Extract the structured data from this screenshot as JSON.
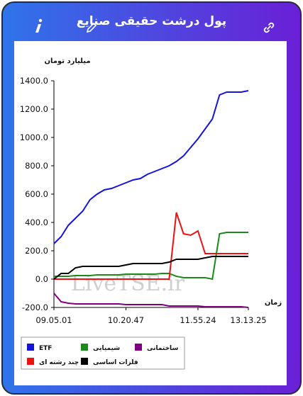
{
  "header": {
    "title": "پول درشت حقیقی صنایع"
  },
  "chart_data": {
    "type": "line",
    "y_label": "میلیارد تومان",
    "x_label": "زمان",
    "watermark": "LiveTSE.ir",
    "categories": [
      "09.05.01",
      null,
      null,
      null,
      null,
      null,
      null,
      null,
      null,
      null,
      "10.20.47",
      null,
      null,
      null,
      null,
      null,
      null,
      null,
      null,
      null,
      "11.55.24",
      null,
      null,
      null,
      null,
      null,
      null,
      "13.13.25"
    ],
    "series": [
      {
        "name": "ETF",
        "color": "#1515d8",
        "values": [
          250,
          300,
          380,
          430,
          480,
          560,
          600,
          630,
          640,
          660,
          680,
          700,
          710,
          740,
          760,
          780,
          800,
          830,
          870,
          930,
          990,
          1060,
          1130,
          1300,
          1320,
          1320,
          1320,
          1330
        ]
      },
      {
        "name": "شیمیایی",
        "color": "#1b8a1b",
        "values": [
          20,
          20,
          20,
          25,
          25,
          25,
          30,
          30,
          30,
          30,
          35,
          35,
          35,
          35,
          35,
          40,
          40,
          20,
          10,
          10,
          10,
          10,
          0,
          320,
          330,
          330,
          330,
          330
        ]
      },
      {
        "name": "ساختمانی",
        "color": "#800080",
        "values": [
          -100,
          -160,
          -170,
          -175,
          -175,
          -175,
          -175,
          -175,
          -175,
          -175,
          -180,
          -180,
          -180,
          -180,
          -180,
          -180,
          -190,
          -190,
          -190,
          -190,
          -190,
          -195,
          -195,
          -195,
          -195,
          -195,
          -195,
          -200
        ]
      },
      {
        "name": "چند رشته ای",
        "color": "#ee1111",
        "values": [
          0,
          0,
          0,
          0,
          0,
          0,
          0,
          0,
          0,
          0,
          0,
          0,
          0,
          0,
          0,
          0,
          0,
          470,
          320,
          310,
          340,
          180,
          180,
          180,
          180,
          180,
          180,
          180
        ]
      },
      {
        "name": "فلزات اساسی",
        "color": "#000000",
        "values": [
          0,
          40,
          40,
          80,
          90,
          90,
          90,
          90,
          90,
          90,
          100,
          110,
          110,
          110,
          110,
          110,
          120,
          140,
          140,
          140,
          140,
          150,
          160,
          160,
          160,
          160,
          160,
          160
        ]
      }
    ],
    "ylim": [
      -200,
      1400
    ],
    "yticks": [
      {
        "value": -200,
        "label": "-200.0"
      },
      {
        "value": 0,
        "label": "0.0"
      },
      {
        "value": 200,
        "label": "200.0"
      },
      {
        "value": 400,
        "label": "400.0"
      },
      {
        "value": 600,
        "label": "600.0"
      },
      {
        "value": 800,
        "label": "800.0"
      },
      {
        "value": 1000,
        "label": "1000.0"
      },
      {
        "value": 1200,
        "label": "1200.0"
      },
      {
        "value": 1400,
        "label": "1400.0"
      }
    ]
  }
}
